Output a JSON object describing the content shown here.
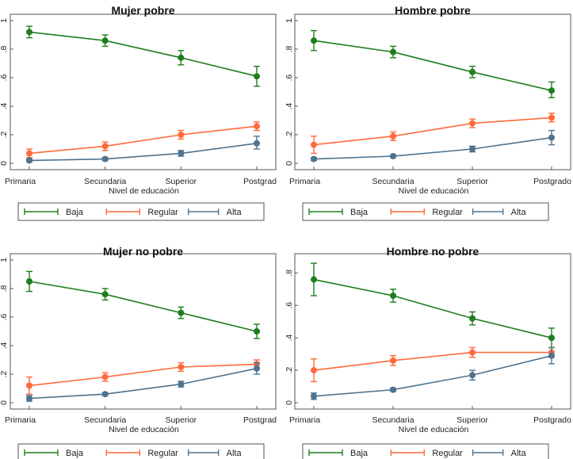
{
  "chart_data": [
    {
      "type": "line",
      "title": "Mujer pobre",
      "xlabel": "Nivel de educación",
      "categories": [
        "Primaria",
        "Secundaria",
        "Superior",
        "Postgrad"
      ],
      "ylim": [
        0,
        1
      ],
      "yticks": [
        0,
        0.2,
        0.4,
        0.6,
        0.8,
        1
      ],
      "ytick_labels": [
        "0",
        ".2",
        ".4",
        ".6",
        ".8",
        "1"
      ],
      "legend": "bottom",
      "series": [
        {
          "name": "Baja",
          "color": "#1e7d1e",
          "values": [
            0.92,
            0.86,
            0.74,
            0.61
          ],
          "ci": [
            [
              0.88,
              0.96
            ],
            [
              0.82,
              0.9
            ],
            [
              0.69,
              0.79
            ],
            [
              0.54,
              0.68
            ]
          ]
        },
        {
          "name": "Regular",
          "color": "#ff6a3a",
          "values": [
            0.07,
            0.12,
            0.2,
            0.26
          ],
          "ci": [
            [
              0.04,
              0.1
            ],
            [
              0.09,
              0.15
            ],
            [
              0.17,
              0.23
            ],
            [
              0.23,
              0.29
            ]
          ]
        },
        {
          "name": "Alta",
          "color": "#4e7390",
          "values": [
            0.02,
            0.03,
            0.07,
            0.14
          ],
          "ci": [
            [
              0.01,
              0.03
            ],
            [
              0.02,
              0.04
            ],
            [
              0.05,
              0.09
            ],
            [
              0.1,
              0.19
            ]
          ]
        }
      ]
    },
    {
      "type": "line",
      "title": "Hombre pobre",
      "xlabel": "Nivel de educación",
      "categories": [
        "Primaria",
        "Secundaria",
        "Superior",
        "Postgrado"
      ],
      "ylim": [
        0,
        1
      ],
      "yticks": [
        0,
        0.2,
        0.4,
        0.6,
        0.8,
        1
      ],
      "ytick_labels": [
        "0",
        ".2",
        ".4",
        ".6",
        ".8",
        "1"
      ],
      "legend": "bottom",
      "series": [
        {
          "name": "Baja",
          "color": "#1e7d1e",
          "values": [
            0.86,
            0.78,
            0.64,
            0.51
          ],
          "ci": [
            [
              0.79,
              0.93
            ],
            [
              0.74,
              0.82
            ],
            [
              0.6,
              0.68
            ],
            [
              0.46,
              0.57
            ]
          ]
        },
        {
          "name": "Regular",
          "color": "#ff6a3a",
          "values": [
            0.13,
            0.19,
            0.28,
            0.32
          ],
          "ci": [
            [
              0.07,
              0.19
            ],
            [
              0.16,
              0.22
            ],
            [
              0.25,
              0.31
            ],
            [
              0.29,
              0.35
            ]
          ]
        },
        {
          "name": "Alta",
          "color": "#4e7390",
          "values": [
            0.03,
            0.05,
            0.1,
            0.18
          ],
          "ci": [
            [
              0.02,
              0.04
            ],
            [
              0.04,
              0.06
            ],
            [
              0.08,
              0.12
            ],
            [
              0.13,
              0.23
            ]
          ]
        }
      ]
    },
    {
      "type": "line",
      "title": "Mujer no pobre",
      "xlabel": "Nivel de educación",
      "categories": [
        "Primaria",
        "Secundaria",
        "Superior",
        "Postgrad"
      ],
      "ylim": [
        0,
        1
      ],
      "yticks": [
        0,
        0.2,
        0.4,
        0.6,
        0.8,
        1
      ],
      "ytick_labels": [
        "0",
        ".2",
        ".4",
        ".6",
        ".8",
        "1"
      ],
      "legend": "bottom",
      "series": [
        {
          "name": "Baja",
          "color": "#1e7d1e",
          "values": [
            0.85,
            0.76,
            0.63,
            0.5
          ],
          "ci": [
            [
              0.78,
              0.92
            ],
            [
              0.72,
              0.8
            ],
            [
              0.59,
              0.67
            ],
            [
              0.45,
              0.55
            ]
          ]
        },
        {
          "name": "Regular",
          "color": "#ff6a3a",
          "values": [
            0.12,
            0.18,
            0.25,
            0.27
          ],
          "ci": [
            [
              0.06,
              0.18
            ],
            [
              0.15,
              0.21
            ],
            [
              0.22,
              0.28
            ],
            [
              0.24,
              0.3
            ]
          ]
        },
        {
          "name": "Alta",
          "color": "#4e7390",
          "values": [
            0.03,
            0.06,
            0.13,
            0.24
          ],
          "ci": [
            [
              0.01,
              0.05
            ],
            [
              0.05,
              0.07
            ],
            [
              0.11,
              0.15
            ],
            [
              0.2,
              0.28
            ]
          ]
        }
      ]
    },
    {
      "type": "line",
      "title": "Hombre no pobre",
      "xlabel": "Nivel de educación",
      "categories": [
        "Primaria",
        "Secundaria",
        "Superior",
        "Postgrado"
      ],
      "ylim": [
        0,
        0.88
      ],
      "yticks": [
        0,
        0.2,
        0.4,
        0.6,
        0.8
      ],
      "ytick_labels": [
        "0",
        ".2",
        ".4",
        ".6",
        ".8"
      ],
      "legend": "bottom",
      "series": [
        {
          "name": "Baja",
          "color": "#1e7d1e",
          "values": [
            0.76,
            0.66,
            0.52,
            0.4
          ],
          "ci": [
            [
              0.66,
              0.86
            ],
            [
              0.62,
              0.7
            ],
            [
              0.48,
              0.56
            ],
            [
              0.34,
              0.46
            ]
          ]
        },
        {
          "name": "Regular",
          "color": "#ff6a3a",
          "values": [
            0.2,
            0.26,
            0.31,
            0.31
          ],
          "ci": [
            [
              0.13,
              0.27
            ],
            [
              0.23,
              0.29
            ],
            [
              0.28,
              0.34
            ],
            [
              0.28,
              0.34
            ]
          ]
        },
        {
          "name": "Alta",
          "color": "#4e7390",
          "values": [
            0.04,
            0.08,
            0.17,
            0.29
          ],
          "ci": [
            [
              0.02,
              0.06
            ],
            [
              0.07,
              0.09
            ],
            [
              0.14,
              0.2
            ],
            [
              0.24,
              0.34
            ]
          ]
        }
      ]
    }
  ]
}
